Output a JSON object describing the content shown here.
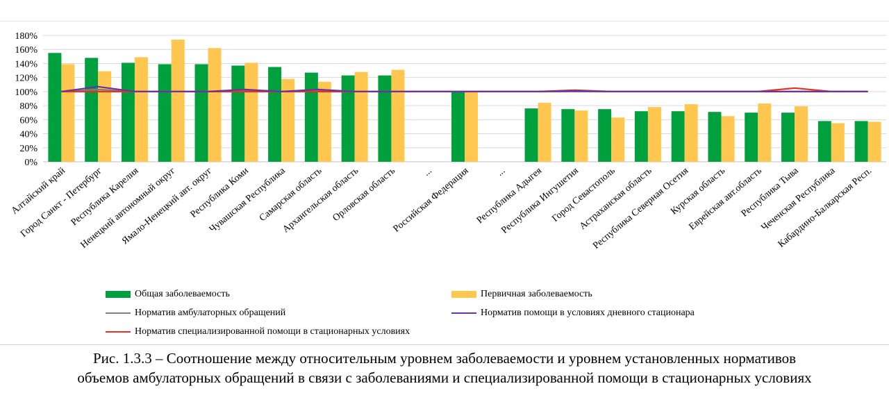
{
  "chart_data": {
    "type": "bar",
    "ylim": [
      0,
      180
    ],
    "yticks": [
      "0%",
      "20%",
      "40%",
      "60%",
      "80%",
      "100%",
      "120%",
      "140%",
      "160%",
      "180%"
    ],
    "categories": [
      "Алтайский край",
      "Город Санкт - Петербург",
      "Республика Карелия",
      "Ненецкий автономный округ",
      "Ямало-Ненецкий авт. округ",
      "Республика Коми",
      "Чувашская Республика",
      "Самарская область",
      "Архангельская область",
      "Орловская область",
      "...",
      "Российская Федерация",
      "...",
      "Республика Адыгея",
      "Республика Ингушетия",
      "Город Севастополь",
      "Астраханская область",
      "Республика Северная Осетия",
      "Курская область",
      "Еврейская авт.область",
      "Республика Тыва",
      "Чеченская Республика",
      "Кабардино-Балкарская Респ."
    ],
    "series": [
      {
        "name": "Общая заболеваемость",
        "type": "bar",
        "color": "#00a03e",
        "values": [
          155,
          148,
          141,
          139,
          139,
          137,
          135,
          127,
          123,
          123,
          null,
          100,
          null,
          76,
          75,
          75,
          72,
          72,
          71,
          70,
          70,
          58,
          58
        ]
      },
      {
        "name": "Первичная заболеваемость",
        "type": "bar",
        "color": "#ffc74f",
        "values": [
          139,
          129,
          149,
          174,
          162,
          141,
          118,
          114,
          128,
          131,
          null,
          100,
          null,
          84,
          73,
          63,
          78,
          82,
          65,
          83,
          79,
          55,
          57
        ]
      },
      {
        "name": "Норматив амбулаторных обращений",
        "type": "line",
        "color": "#7f7f7f",
        "values": [
          100,
          103,
          100,
          100,
          100,
          101,
          100,
          101,
          100,
          100,
          100,
          100,
          100,
          100,
          100,
          100,
          100,
          100,
          100,
          100,
          100,
          100,
          100
        ]
      },
      {
        "name": "Норматив помощи в условиях дневного стационара",
        "type": "line",
        "color": "#7030a0",
        "values": [
          100,
          107,
          100,
          100,
          100,
          103,
          100,
          103,
          100,
          100,
          100,
          100,
          100,
          100,
          101,
          100,
          100,
          100,
          100,
          100,
          100,
          100,
          100
        ]
      },
      {
        "name": "Норматив специализированной помощи в стационарных условиях",
        "type": "line",
        "color": "#e53323",
        "values": [
          100,
          100,
          100,
          100,
          100,
          100,
          100,
          100,
          100,
          100,
          100,
          100,
          100,
          100,
          102,
          100,
          100,
          100,
          100,
          100,
          105,
          100,
          100
        ]
      }
    ]
  },
  "caption": {
    "line1": "Рис. 1.3.3 – Соотношение между относительным уровнем заболеваемости и уровнем установленных нормативов",
    "line2": "объемов амбулаторных обращений в связи с заболеваниями и специализированной помощи в стационарных условиях"
  }
}
